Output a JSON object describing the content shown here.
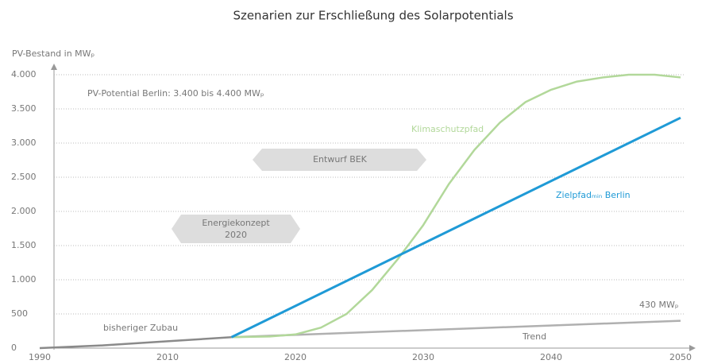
{
  "chart_data": {
    "type": "line",
    "title": "Szenarien zur Erschließung des Solarpotentials",
    "y_label": "PV-Bestand in MWₚ",
    "annotations": [
      "PV-Potential Berlin: 3.400 bis 4.400 MWₚ",
      "Entwurf BEK",
      "Energiekonzept",
      "2020",
      "430 MWₚ"
    ],
    "xticks": [
      1990,
      2010,
      2020,
      2030,
      2040,
      2050
    ],
    "xlim": [
      1990,
      2050
    ],
    "ylim": [
      0,
      4000
    ],
    "yticks": [
      0,
      500,
      {
        "value": 1000,
        "label": "1.000"
      },
      {
        "value": 1500,
        "label": "1.500"
      },
      {
        "value": 2000,
        "label": "2.000"
      },
      {
        "value": 2500,
        "label": "2.500"
      },
      {
        "value": 3000,
        "label": "3.000"
      },
      {
        "value": 3500,
        "label": "3.500"
      },
      {
        "value": 4000,
        "label": "4.000"
      }
    ],
    "grid": true,
    "series": [
      {
        "name": "bisheriger Zubau",
        "color": "#8a8a8a",
        "x": [
          1990,
          2000,
          2010,
          2015
        ],
        "values": [
          0,
          40,
          100,
          160
        ]
      },
      {
        "name": "Trend",
        "color": "#b0b0b0",
        "x": [
          2015,
          2050
        ],
        "values": [
          160,
          400
        ]
      },
      {
        "name": "Klimaschutzpfad",
        "color": "#b2d89a",
        "x": [
          2015,
          2018,
          2020,
          2022,
          2024,
          2026,
          2028,
          2029,
          2030,
          2032,
          2034,
          2036,
          2038,
          2040,
          2042,
          2044,
          2046,
          2048,
          2050
        ],
        "values": [
          160,
          170,
          200,
          300,
          500,
          850,
          1300,
          1550,
          1800,
          2400,
          2900,
          3300,
          3600,
          3780,
          3900,
          3960,
          4000,
          4000,
          3960
        ]
      },
      {
        "name": "Zielpfadₘᵢₙ Berlin",
        "color": "#1f9ad6",
        "x": [
          2015,
          2050
        ],
        "values": [
          160,
          3370
        ]
      }
    ]
  }
}
